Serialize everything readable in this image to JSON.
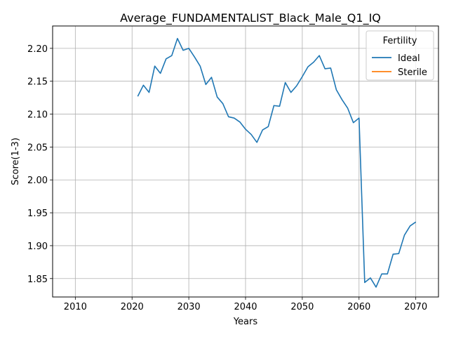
{
  "chart_data": {
    "type": "line",
    "title": "Average_FUNDAMENTALIST_Black_Male_Q1_IQ",
    "xlabel": "Years",
    "ylabel": "Score(1-3)",
    "xlim": [
      2006,
      2074
    ],
    "ylim": [
      1.822,
      2.234
    ],
    "xticks": [
      2010,
      2020,
      2030,
      2040,
      2050,
      2060,
      2070
    ],
    "yticks": [
      1.85,
      1.9,
      1.95,
      2.0,
      2.05,
      2.1,
      2.15,
      2.2
    ],
    "ytick_labels": [
      "1.85",
      "1.90",
      "1.95",
      "2.00",
      "2.05",
      "2.10",
      "2.15",
      "2.20"
    ],
    "grid": true,
    "legend": {
      "title": "Fertility",
      "placement": "top-right"
    },
    "series": [
      {
        "name": "Ideal",
        "color": "#1f77b4",
        "x": [
          2021,
          2022,
          2023,
          2024,
          2025,
          2026,
          2027,
          2028,
          2029,
          2030,
          2031,
          2032,
          2033,
          2034,
          2035,
          2036,
          2037,
          2038,
          2039,
          2040,
          2041,
          2042,
          2043,
          2044,
          2045,
          2046,
          2047,
          2048,
          2049,
          2050,
          2051,
          2052,
          2053,
          2054,
          2055,
          2056,
          2057,
          2058,
          2059,
          2060,
          2061,
          2062,
          2063,
          2064,
          2065,
          2066,
          2067,
          2068,
          2069,
          2070
        ],
        "values": [
          2.127,
          2.144,
          2.133,
          2.173,
          2.162,
          2.184,
          2.189,
          2.215,
          2.197,
          2.2,
          2.187,
          2.173,
          2.145,
          2.156,
          2.126,
          2.116,
          2.096,
          2.094,
          2.088,
          2.077,
          2.069,
          2.057,
          2.076,
          2.081,
          2.113,
          2.112,
          2.148,
          2.133,
          2.143,
          2.157,
          2.172,
          2.179,
          2.189,
          2.169,
          2.17,
          2.137,
          2.122,
          2.109,
          2.087,
          2.094,
          1.844,
          1.851,
          1.837,
          1.857,
          1.857,
          1.887,
          1.888,
          1.916,
          1.93,
          1.936
        ]
      },
      {
        "name": "Sterile",
        "color": "#ff7f0e",
        "x": [],
        "values": []
      }
    ]
  }
}
